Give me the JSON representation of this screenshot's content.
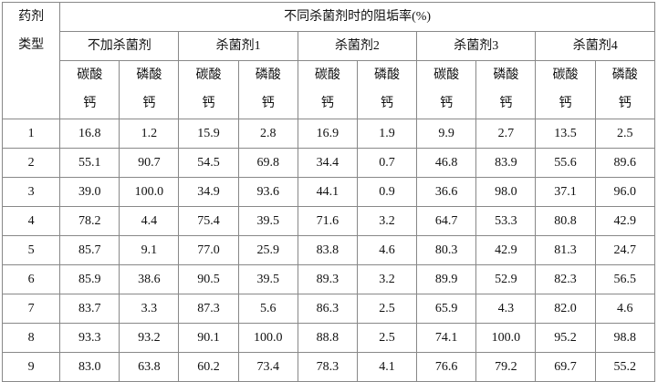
{
  "table": {
    "corner": "药剂类型",
    "title": "不同杀菌剂时的阻垢率(%)",
    "groups": [
      "不加杀菌剂",
      "杀菌剂1",
      "杀菌剂2",
      "杀菌剂3",
      "杀菌剂4"
    ],
    "subheaders": [
      "碳酸钙",
      "磷酸钙"
    ],
    "rows": [
      [
        "1",
        "16.8",
        "1.2",
        "15.9",
        "2.8",
        "16.9",
        "1.9",
        "9.9",
        "2.7",
        "13.5",
        "2.5"
      ],
      [
        "2",
        "55.1",
        "90.7",
        "54.5",
        "69.8",
        "34.4",
        "0.7",
        "46.8",
        "83.9",
        "55.6",
        "89.6"
      ],
      [
        "3",
        "39.0",
        "100.0",
        "34.9",
        "93.6",
        "44.1",
        "0.9",
        "36.6",
        "98.0",
        "37.1",
        "96.0"
      ],
      [
        "4",
        "78.2",
        "4.4",
        "75.4",
        "39.5",
        "71.6",
        "3.2",
        "64.7",
        "53.3",
        "80.8",
        "42.9"
      ],
      [
        "5",
        "85.7",
        "9.1",
        "77.0",
        "25.9",
        "83.8",
        "4.6",
        "80.3",
        "42.9",
        "81.3",
        "24.7"
      ],
      [
        "6",
        "85.9",
        "38.6",
        "90.5",
        "39.5",
        "89.3",
        "3.2",
        "89.9",
        "52.9",
        "82.3",
        "56.5"
      ],
      [
        "7",
        "83.7",
        "3.3",
        "87.3",
        "5.6",
        "86.3",
        "2.5",
        "65.9",
        "4.3",
        "82.0",
        "4.6"
      ],
      [
        "8",
        "93.3",
        "93.2",
        "90.1",
        "100.0",
        "88.8",
        "2.5",
        "74.1",
        "100.0",
        "95.2",
        "98.8"
      ],
      [
        "9",
        "83.0",
        "63.8",
        "60.2",
        "73.4",
        "78.3",
        "4.1",
        "76.6",
        "79.2",
        "69.7",
        "55.2"
      ]
    ]
  }
}
